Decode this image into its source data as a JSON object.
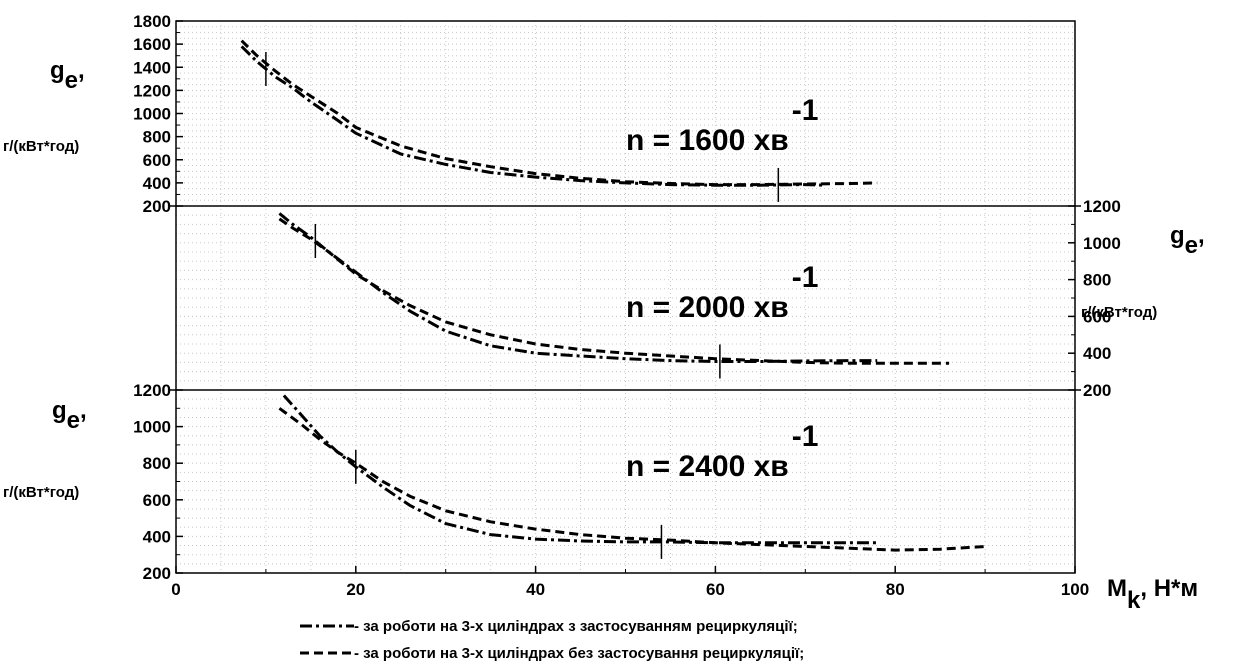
{
  "chart_data": {
    "type": "line",
    "x_axis": {
      "label_main": "M",
      "label_sub": "k",
      "label_suffix": ", Н*м",
      "range": [
        0,
        100
      ],
      "ticks": [
        "0",
        "20",
        "40",
        "60",
        "80",
        "100"
      ]
    },
    "legend": [
      {
        "style": "dash-dot",
        "text": "- за роботи на 3-х циліндрах з застосуванням рециркуляції;"
      },
      {
        "style": "dashed",
        "text": "- за роботи на 3-х циліндрах без застосування рециркуляції;"
      }
    ],
    "panels": [
      {
        "id": "top",
        "annotation": {
          "text": "n = 1600 хв",
          "sup": "-1"
        },
        "y_axis": {
          "side": "left",
          "label_main": "g",
          "label_sub": "e",
          "label_suffix": ",",
          "unit": "г/(кВт*год)",
          "range": [
            200,
            1800
          ],
          "ticks": [
            "200",
            "400",
            "600",
            "800",
            "1000",
            "1200",
            "1400",
            "1600",
            "1800"
          ]
        },
        "markers": [
          10,
          67
        ],
        "series": [
          {
            "style": "dash-dot",
            "x": [
              7.3,
              9,
              11,
              13,
              15,
              18,
              20,
              25,
              30,
              35,
              40,
              45,
              50,
              55,
              60,
              65,
              70,
              72
            ],
            "y": [
              1580,
              1450,
              1320,
              1220,
              1100,
              940,
              830,
              650,
              560,
              490,
              450,
              420,
              400,
              385,
              380,
              380,
              385,
              380
            ]
          },
          {
            "style": "dashed",
            "x": [
              7.3,
              9,
              11,
              13,
              15,
              18,
              20,
              25,
              30,
              35,
              40,
              45,
              50,
              55,
              60,
              65,
              70,
              75,
              78
            ],
            "y": [
              1630,
              1500,
              1370,
              1250,
              1150,
              1000,
              880,
              720,
              610,
              540,
              480,
              440,
              410,
              395,
              385,
              385,
              390,
              395,
              400
            ]
          }
        ]
      },
      {
        "id": "middle",
        "annotation": {
          "text": "n = 2000 хв",
          "sup": "-1"
        },
        "y_axis": {
          "side": "right",
          "label_main": "g",
          "label_sub": "e",
          "label_suffix": ",",
          "unit": "г/(кВт*год)",
          "range": [
            200,
            1200
          ],
          "ticks": [
            "200",
            "400",
            "600",
            "800",
            "1000",
            "1200"
          ]
        },
        "markers": [
          15.5,
          60.5
        ],
        "series": [
          {
            "style": "dash-dot",
            "x": [
              11.5,
              13,
              15,
              17,
              20,
              23,
              26,
              30,
              35,
              40,
              45,
              50,
              55,
              60,
              65,
              70,
              75,
              78
            ],
            "y": [
              1160,
              1100,
              1030,
              950,
              840,
              730,
              630,
              520,
              440,
              400,
              385,
              370,
              360,
              355,
              355,
              358,
              360,
              360
            ]
          },
          {
            "style": "dashed",
            "x": [
              11.5,
              13,
              15,
              17,
              20,
              23,
              26,
              30,
              35,
              40,
              45,
              50,
              55,
              60,
              65,
              70,
              75,
              80,
              86
            ],
            "y": [
              1130,
              1080,
              1020,
              950,
              830,
              740,
              660,
              570,
              500,
              450,
              420,
              400,
              385,
              370,
              360,
              350,
              345,
              345,
              345
            ]
          }
        ]
      },
      {
        "id": "bottom",
        "annotation": {
          "text": "n = 2400 хв",
          "sup": "-1"
        },
        "y_axis": {
          "side": "left",
          "label_main": "g",
          "label_sub": "e",
          "label_suffix": ",",
          "unit": "г/(кВт*год)",
          "range": [
            200,
            1200
          ],
          "ticks": [
            "200",
            "400",
            "600",
            "800",
            "1000",
            "1200"
          ]
        },
        "markers": [
          20,
          54
        ],
        "series": [
          {
            "style": "dash-dot",
            "x": [
              12,
              14,
              16,
              18,
              20,
              23,
              26,
              30,
              35,
              40,
              45,
              50,
              55,
              60,
              65,
              70,
              75,
              78
            ],
            "y": [
              1170,
              1060,
              950,
              860,
              780,
              670,
              570,
              470,
              410,
              385,
              375,
              370,
              370,
              365,
              365,
              365,
              365,
              365
            ]
          },
          {
            "style": "dashed",
            "x": [
              11.5,
              14,
              16,
              18,
              20,
              23,
              26,
              30,
              35,
              40,
              45,
              50,
              55,
              60,
              65,
              70,
              75,
              80,
              85,
              90
            ],
            "y": [
              1100,
              1010,
              930,
              860,
              800,
              700,
              620,
              540,
              480,
              440,
              410,
              390,
              380,
              365,
              355,
              345,
              335,
              325,
              330,
              345
            ]
          }
        ]
      }
    ]
  }
}
